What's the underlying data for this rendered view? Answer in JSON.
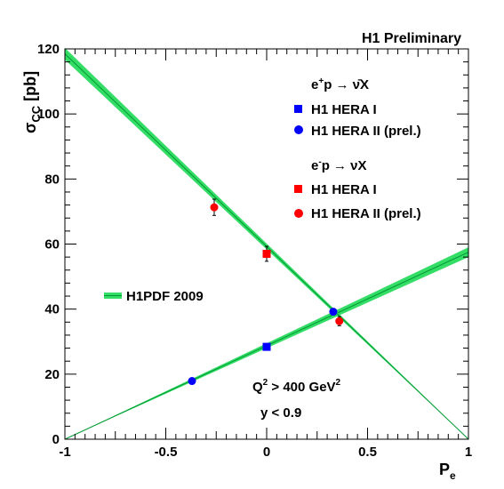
{
  "chart_data": {
    "type": "scatter",
    "title": "H1 Preliminary",
    "xlabel": "P",
    "xlabel_sub": "e",
    "ylabel": "σ",
    "ylabel_sub": "CC",
    "ylabel_unit": "[pb]",
    "xlim": [
      -1,
      1
    ],
    "ylim": [
      0,
      120
    ],
    "x_ticks": [
      -1,
      -0.5,
      0,
      0.5,
      1
    ],
    "x_tick_labels": [
      "-1",
      "-0.5",
      "0",
      "0.5",
      "1"
    ],
    "y_ticks": [
      0,
      20,
      40,
      60,
      80,
      100,
      120
    ],
    "y_tick_labels": [
      "0",
      "20",
      "40",
      "60",
      "80",
      "100",
      "120"
    ],
    "grid": false,
    "legend_position": "top-right",
    "groups": [
      {
        "header": "e",
        "header_sup": "+",
        "header_rest": "p → ν̄X"
      },
      {
        "header": "e",
        "header_sup": "-",
        "header_rest": "p → νX"
      }
    ],
    "series": [
      {
        "name": "H1 HERA I",
        "group": 0,
        "marker": "square",
        "color": "#0000ff",
        "points": [
          {
            "x": 0.0,
            "y": 28.4,
            "err": 0.9
          }
        ]
      },
      {
        "name": "H1 HERA II (prel.)",
        "group": 0,
        "marker": "circle",
        "color": "#0000ff",
        "points": [
          {
            "x": -0.37,
            "y": 17.9,
            "err": 0.6
          },
          {
            "x": 0.33,
            "y": 39.2,
            "err": 1.0
          }
        ]
      },
      {
        "name": "H1 HERA I",
        "group": 1,
        "marker": "square",
        "color": "#ff0000",
        "points": [
          {
            "x": 0.0,
            "y": 57.0,
            "err": 2.3
          }
        ]
      },
      {
        "name": "H1 HERA II (prel.)",
        "group": 1,
        "marker": "circle",
        "color": "#ff0000",
        "points": [
          {
            "x": -0.26,
            "y": 71.3,
            "err": 2.5
          },
          {
            "x": 0.36,
            "y": 36.3,
            "err": 1.4
          }
        ]
      }
    ],
    "bands": [
      {
        "name": "H1PDF 2009",
        "color": "#33dd66",
        "line_color": "#009933",
        "x": [
          -1,
          1
        ],
        "y": [
          0,
          57.5
        ],
        "y_err": [
          0,
          1.5
        ]
      },
      {
        "name": "H1PDF 2009",
        "color": "#33dd66",
        "line_color": "#009933",
        "x": [
          -1,
          1
        ],
        "y": [
          118.5,
          0
        ],
        "y_err": [
          1.8,
          0
        ]
      }
    ],
    "band_legend_label": "H1PDF 2009",
    "annotations": [
      {
        "text": "Q",
        "sup1": "2",
        "mid": " > 400 GeV",
        "sup2": "2"
      },
      {
        "text": "y < 0.9"
      }
    ]
  }
}
